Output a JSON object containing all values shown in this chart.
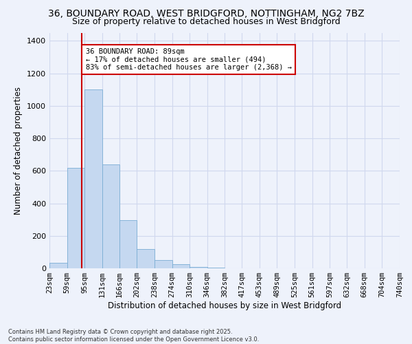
{
  "title_line1": "36, BOUNDARY ROAD, WEST BRIDGFORD, NOTTINGHAM, NG2 7BZ",
  "title_line2": "Size of property relative to detached houses in West Bridgford",
  "xlabel": "Distribution of detached houses by size in West Bridgford",
  "ylabel": "Number of detached properties",
  "footnote": "Contains HM Land Registry data © Crown copyright and database right 2025.\nContains public sector information licensed under the Open Government Licence v3.0.",
  "bin_edges": [
    23,
    59,
    95,
    131,
    166,
    202,
    238,
    274,
    310,
    346,
    382,
    417,
    453,
    489,
    525,
    561,
    597,
    632,
    668,
    704,
    740
  ],
  "bin_labels": [
    "23sqm",
    "59sqm",
    "95sqm",
    "131sqm",
    "166sqm",
    "202sqm",
    "238sqm",
    "274sqm",
    "310sqm",
    "346sqm",
    "382sqm",
    "417sqm",
    "453sqm",
    "489sqm",
    "525sqm",
    "561sqm",
    "597sqm",
    "632sqm",
    "668sqm",
    "704sqm",
    "740sqm"
  ],
  "bar_heights": [
    35,
    620,
    1100,
    640,
    295,
    120,
    50,
    25,
    10,
    5,
    2,
    2,
    1,
    1,
    0,
    0,
    0,
    0,
    0,
    0
  ],
  "bar_color": "#c5d8f0",
  "bar_edgecolor": "#7aadd4",
  "property_size": 89,
  "vline_color": "#cc0000",
  "annotation_text": "36 BOUNDARY ROAD: 89sqm\n← 17% of detached houses are smaller (494)\n83% of semi-detached houses are larger (2,368) →",
  "annotation_box_facecolor": "white",
  "annotation_box_edgecolor": "#cc0000",
  "ylim": [
    0,
    1450
  ],
  "background_color": "#eef2fb",
  "grid_color": "#d0d8ee",
  "title_fontsize": 10,
  "subtitle_fontsize": 9,
  "axis_label_fontsize": 8.5,
  "tick_fontsize": 7.5,
  "annot_fontsize": 7.5
}
